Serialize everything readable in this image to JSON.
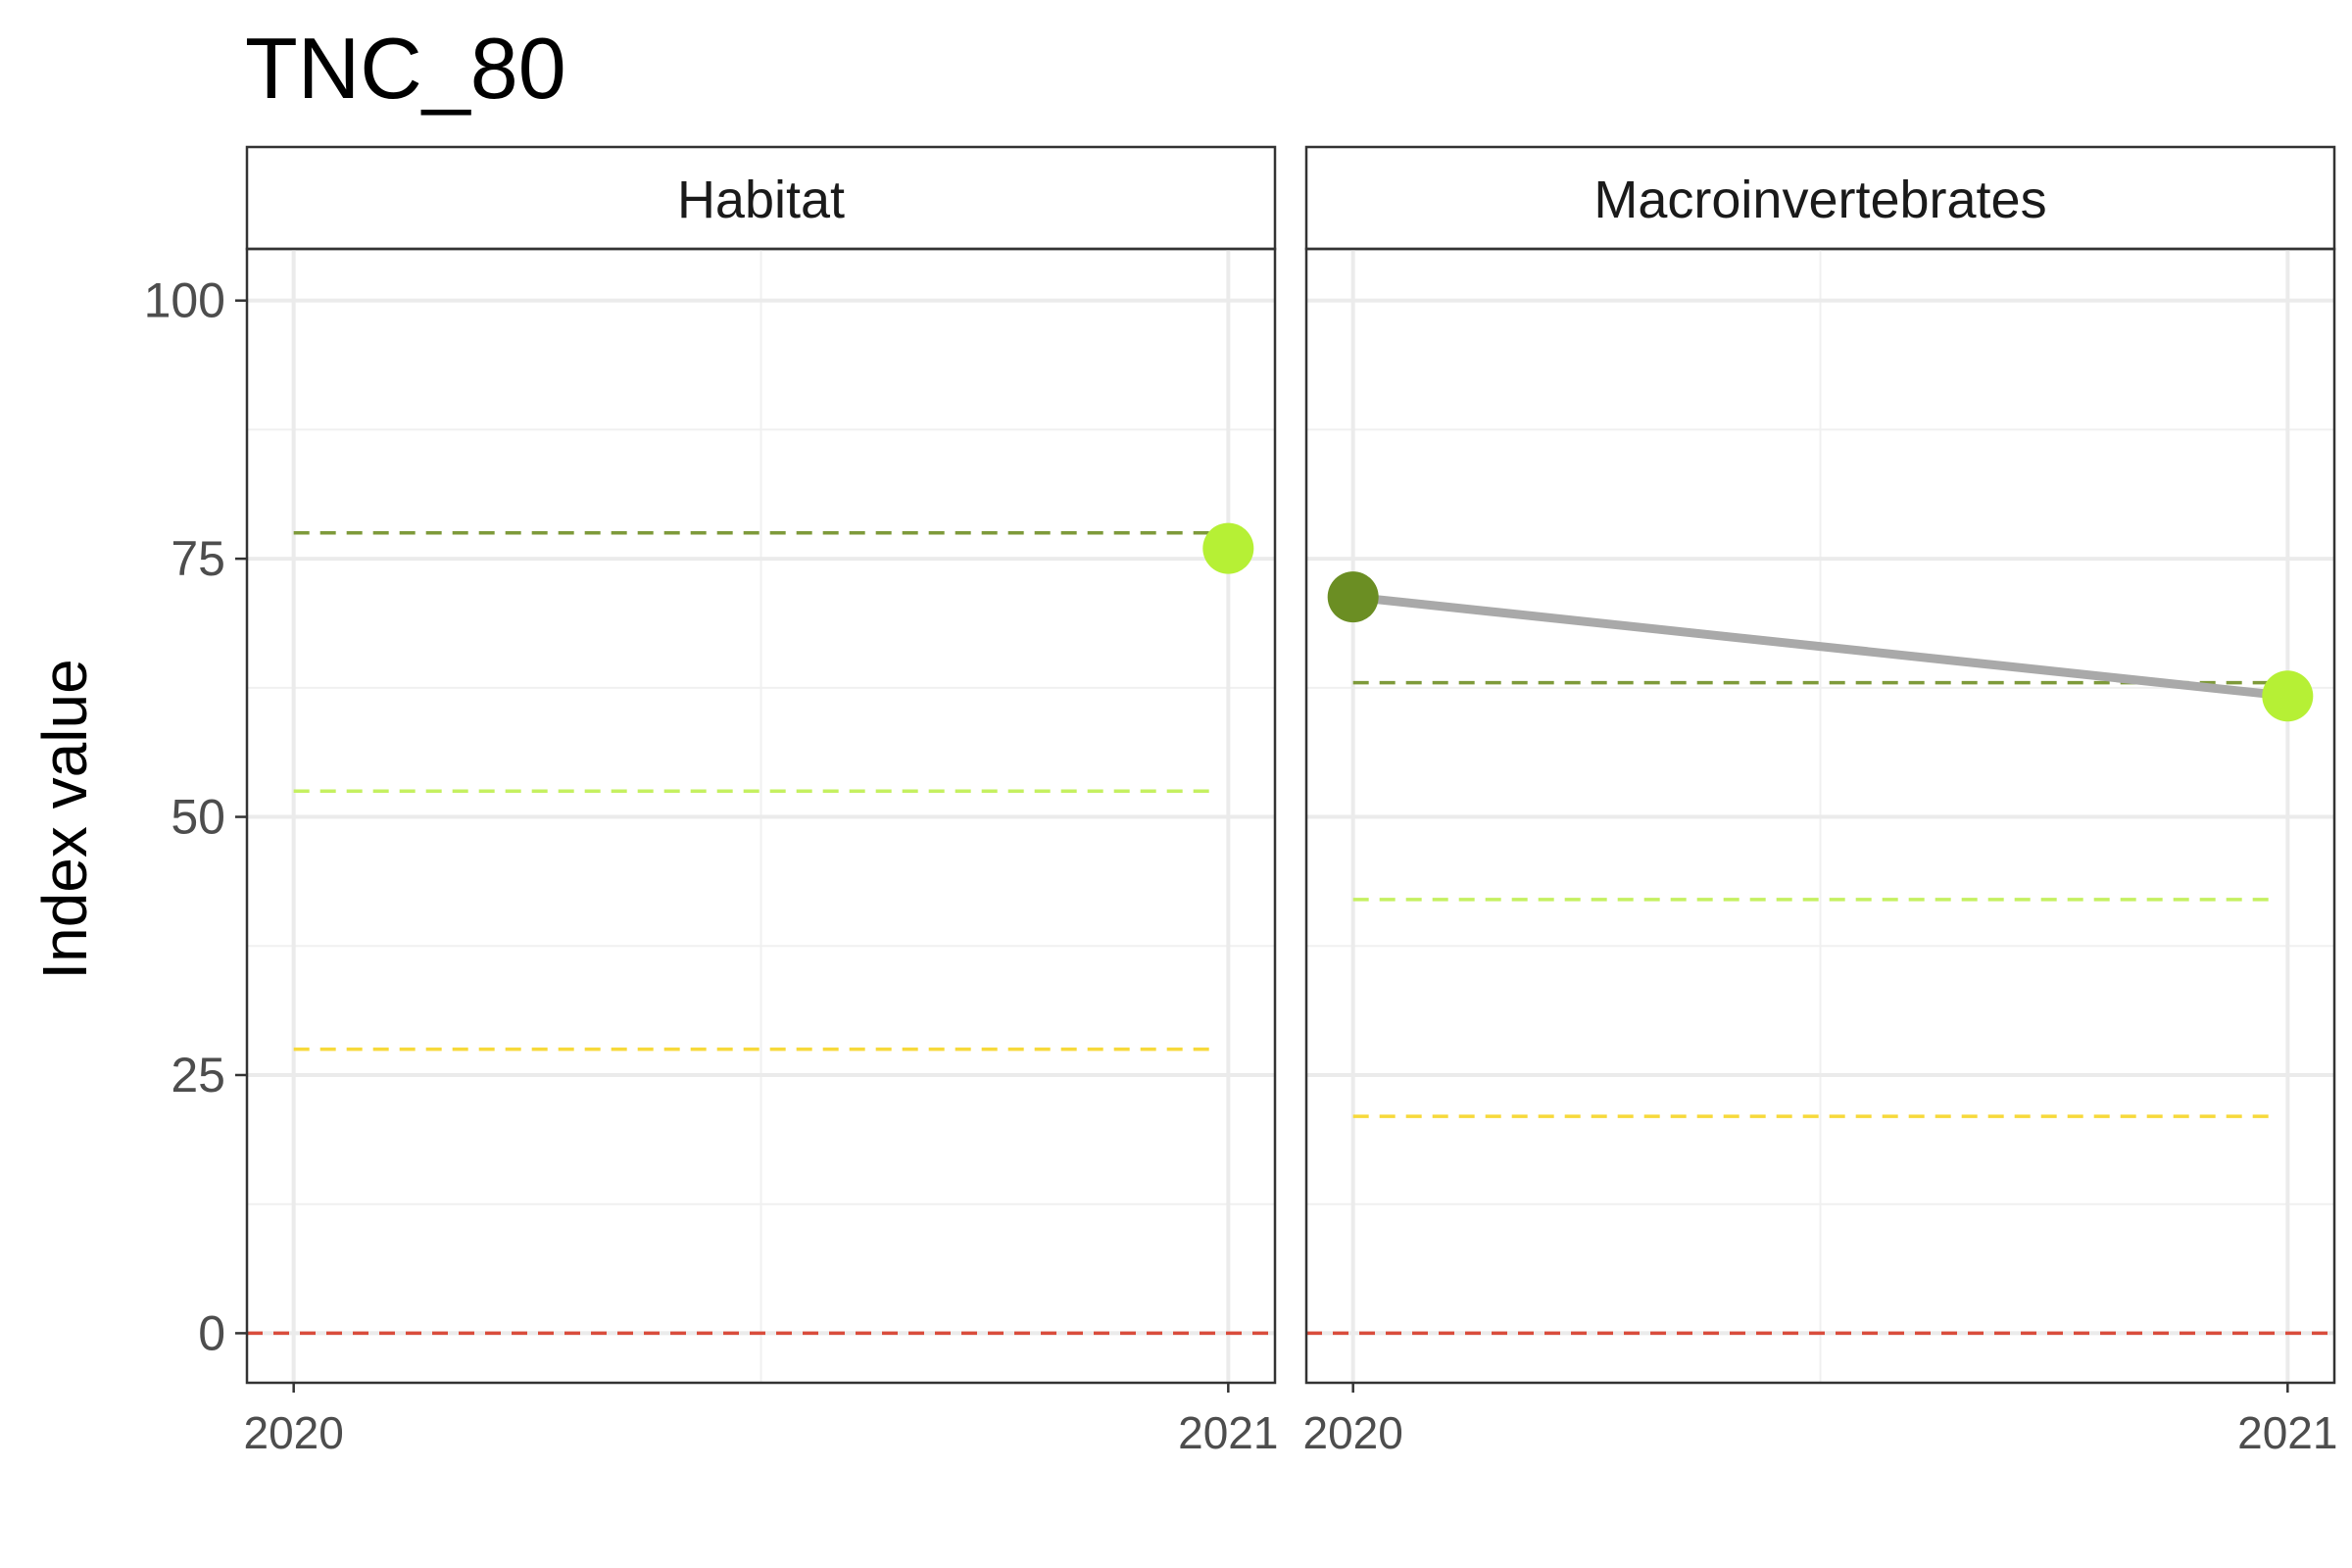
{
  "chart_data": {
    "type": "line",
    "title": "TNC_80",
    "ylabel": "Index value",
    "xlabel": "",
    "ylim": [
      -4.8,
      105
    ],
    "xlim": [
      2019.95,
      2021.05
    ],
    "y_ticks": [
      0,
      25,
      50,
      75,
      100
    ],
    "x_ticks": [
      2020,
      2021
    ],
    "x_tick_labels": [
      "2020",
      "2021"
    ],
    "y_tick_labels": [
      "0",
      "25",
      "50",
      "75",
      "100"
    ],
    "grid": true,
    "legend": "none",
    "facets": [
      {
        "strip": "Habitat",
        "thresholds": [
          {
            "value": 77.5,
            "color": "#7e9a3a"
          },
          {
            "value": 52.5,
            "color": "#c5f060"
          },
          {
            "value": 27.5,
            "color": "#f7d93a"
          },
          {
            "value": 0,
            "color": "#d94c3c"
          }
        ],
        "series": [
          {
            "x": [
              2021
            ],
            "y": [
              76
            ],
            "colors": [
              "#b6f035"
            ]
          }
        ]
      },
      {
        "strip": "Macroinvertebrates",
        "thresholds": [
          {
            "value": 63,
            "color": "#7e9a3a"
          },
          {
            "value": 42,
            "color": "#c5f060"
          },
          {
            "value": 21,
            "color": "#f7d93a"
          },
          {
            "value": 0,
            "color": "#d94c3c"
          }
        ],
        "series": [
          {
            "x": [
              2020,
              2021
            ],
            "y": [
              71.3,
              61.7
            ],
            "colors": [
              "#6b8e23",
              "#b6f035"
            ],
            "line_color": "#a9a9a9"
          }
        ]
      }
    ]
  }
}
